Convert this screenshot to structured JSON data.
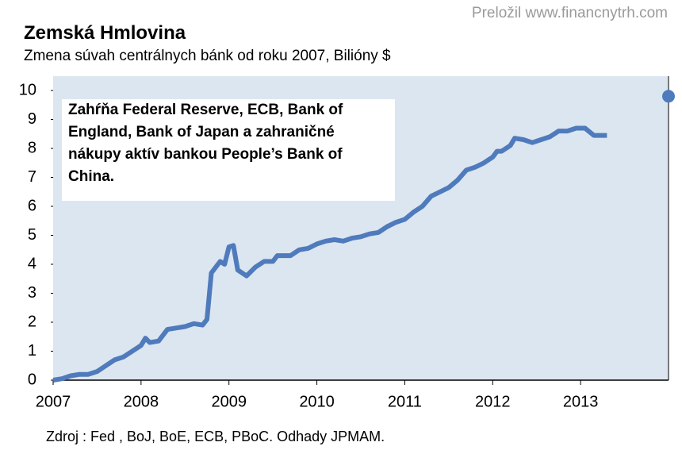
{
  "chart_data": {
    "type": "line",
    "title": "Zemská Hmlovina",
    "subtitle": "Zmena súvah centrálnych bánk od roku 2007, Bilióny $",
    "credit": "Preložil www.financnytrh.com",
    "source": "Zdroj : Fed , BoJ, BoE, ECB, PBoC. Odhady JPMAM.",
    "annotation": "Zahŕňa Federal Reserve, ECB, Bank of England, Bank of Japan a zahraničné nákupy aktív bankou People’s Bank of China.",
    "x": [
      2007.0,
      2007.1,
      2007.2,
      2007.3,
      2007.4,
      2007.5,
      2007.6,
      2007.7,
      2007.8,
      2007.9,
      2008.0,
      2008.05,
      2008.1,
      2008.2,
      2008.3,
      2008.4,
      2008.5,
      2008.6,
      2008.7,
      2008.75,
      2008.8,
      2008.9,
      2008.95,
      2009.0,
      2009.05,
      2009.1,
      2009.2,
      2009.3,
      2009.4,
      2009.5,
      2009.55,
      2009.7,
      2009.8,
      2009.9,
      2010.0,
      2010.1,
      2010.2,
      2010.3,
      2010.4,
      2010.5,
      2010.6,
      2010.7,
      2010.8,
      2010.9,
      2011.0,
      2011.1,
      2011.2,
      2011.3,
      2011.4,
      2011.5,
      2011.6,
      2011.7,
      2011.8,
      2011.9,
      2012.0,
      2012.05,
      2012.1,
      2012.2,
      2012.25,
      2012.35,
      2012.45,
      2012.55,
      2012.65,
      2012.75,
      2012.85,
      2012.95,
      2013.05,
      2013.15,
      2013.3
    ],
    "series": [
      {
        "color": "#4f7bbd",
        "values": [
          0.0,
          0.05,
          0.15,
          0.2,
          0.2,
          0.3,
          0.5,
          0.7,
          0.8,
          1.0,
          1.2,
          1.45,
          1.3,
          1.35,
          1.75,
          1.8,
          1.85,
          1.95,
          1.9,
          2.1,
          3.7,
          4.1,
          4.0,
          4.6,
          4.65,
          3.8,
          3.6,
          3.9,
          4.1,
          4.1,
          4.3,
          4.3,
          4.5,
          4.55,
          4.7,
          4.8,
          4.85,
          4.8,
          4.9,
          4.95,
          5.05,
          5.1,
          5.3,
          5.45,
          5.55,
          5.8,
          6.0,
          6.35,
          6.5,
          6.65,
          6.9,
          7.25,
          7.35,
          7.5,
          7.7,
          7.9,
          7.9,
          8.1,
          8.35,
          8.3,
          8.2,
          8.3,
          8.4,
          8.6,
          8.6,
          8.7,
          8.7,
          8.45,
          8.45
        ]
      }
    ],
    "projection": {
      "x": 2014,
      "y": 9.8,
      "color": "#4f7bbd"
    },
    "xlim": [
      2007,
      2014
    ],
    "xticks": [
      2007,
      2008,
      2009,
      2010,
      2011,
      2012,
      2013
    ],
    "ylim": [
      0,
      10
    ],
    "yticks": [
      0,
      1,
      2,
      3,
      4,
      5,
      6,
      7,
      8,
      9,
      10
    ],
    "background": "#dce6f0"
  }
}
